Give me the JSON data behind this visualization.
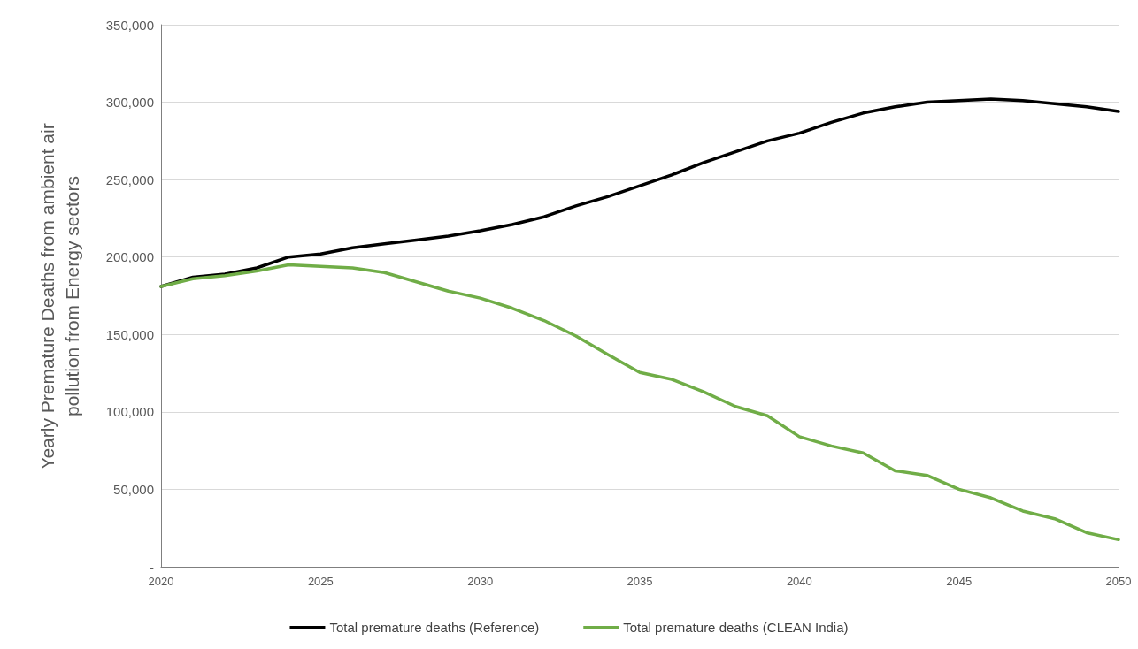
{
  "chart_data": {
    "type": "line",
    "ylabel": "Yearly Premature Deaths from ambient air pollution from Energy sectors",
    "x": [
      2020,
      2021,
      2022,
      2023,
      2024,
      2025,
      2026,
      2027,
      2028,
      2029,
      2030,
      2031,
      2032,
      2033,
      2034,
      2035,
      2036,
      2037,
      2038,
      2039,
      2040,
      2041,
      2042,
      2043,
      2044,
      2045,
      2046,
      2047,
      2048,
      2049,
      2050
    ],
    "xlim": [
      2020,
      2050
    ],
    "xticks": [
      2020,
      2025,
      2030,
      2035,
      2040,
      2045,
      2050
    ],
    "series": [
      {
        "name": "Total premature deaths (Reference)",
        "color": "#000000",
        "values": [
          181000,
          187000,
          189000,
          193000,
          200000,
          202000,
          206000,
          208500,
          211000,
          213500,
          217000,
          221000,
          226000,
          233000,
          239000,
          246000,
          253000,
          261000,
          268000,
          275000,
          280000,
          287000,
          293000,
          297000,
          300000,
          301000,
          302000,
          301000,
          299000,
          297000,
          294000
        ]
      },
      {
        "name": "Total premature deaths (CLEAN India)",
        "color": "#70ad47",
        "values": [
          181000,
          186000,
          188000,
          191000,
          195000,
          194000,
          193000,
          190000,
          184000,
          178000,
          173500,
          167000,
          159000,
          149000,
          137000,
          125500,
          121000,
          113000,
          103500,
          97500,
          84000,
          78000,
          73500,
          62000,
          59000,
          50000,
          44500,
          36000,
          31000,
          22000,
          17500
        ]
      }
    ],
    "ylim": [
      0,
      350000
    ],
    "yticks": [
      {
        "value": 0,
        "label": "-"
      },
      {
        "value": 50000,
        "label": "50,000"
      },
      {
        "value": 100000,
        "label": "100,000"
      },
      {
        "value": 150000,
        "label": "150,000"
      },
      {
        "value": 200000,
        "label": "200,000"
      },
      {
        "value": 250000,
        "label": "250,000"
      },
      {
        "value": 300000,
        "label": "300,000"
      },
      {
        "value": 350000,
        "label": "350,000"
      }
    ],
    "grid": "y",
    "legend": "bottom",
    "marker": "none",
    "line_style": "solid"
  }
}
